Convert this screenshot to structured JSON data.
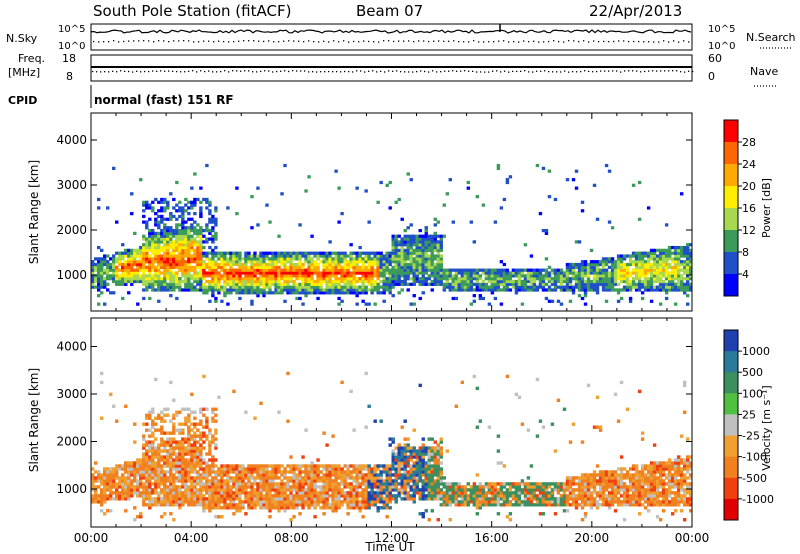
{
  "header": {
    "station": "South Pole Station (fitACF)",
    "beam": "Beam 07",
    "date": "22/Apr/2013"
  },
  "top_panels": {
    "nsky_label": "N.Sky",
    "nsky_ticks": [
      "10^5",
      "10^0"
    ],
    "nsearch_label": "N.Search",
    "nsearch_ticks": [
      "10^5",
      "10^0"
    ],
    "freq_label_1": "Freq.",
    "freq_label_2": "[MHz]",
    "freq_ticks": [
      "18",
      "8"
    ],
    "nave_label": "Nave",
    "nave_ticks": [
      "60",
      "0"
    ],
    "cpid_label": "CPID",
    "cpid_text": "normal (fast) 151 RF"
  },
  "chart_data": [
    {
      "type": "heatmap",
      "name": "power",
      "xlabel": "",
      "ylabel": "Slant Range [km]",
      "ylim": [
        200,
        4600
      ],
      "yticks": [
        "1000",
        "2000",
        "3000",
        "4000"
      ],
      "colorbar": {
        "label": "Power [dB]",
        "ticks": [
          "28",
          "24",
          "20",
          "16",
          "12",
          "8",
          "4"
        ],
        "colors": [
          "#ff0000",
          "#ff6600",
          "#ffaa00",
          "#ffee00",
          "#a8d850",
          "#3c9a5a",
          "#2050c8",
          "#0000ff"
        ]
      }
    },
    {
      "type": "heatmap",
      "name": "velocity",
      "xlabel": "Time UT",
      "ylabel": "Slant Range [km]",
      "ylim": [
        200,
        4600
      ],
      "yticks": [
        "1000",
        "2000",
        "3000",
        "4000"
      ],
      "xticks": [
        "00:00",
        "04:00",
        "08:00",
        "12:00",
        "16:00",
        "20:00",
        "00:00"
      ],
      "colorbar": {
        "label": "Velocity [m s⁻¹]",
        "ticks": [
          "1000",
          "500",
          "100",
          "25",
          "-25",
          "-100",
          "-500",
          "-1000"
        ],
        "colors": [
          "#2040b0",
          "#2a7a9a",
          "#3c9060",
          "#50c040",
          "#c0c0c0",
          "#f0a030",
          "#f08020",
          "#f04010",
          "#e00000"
        ]
      }
    }
  ]
}
